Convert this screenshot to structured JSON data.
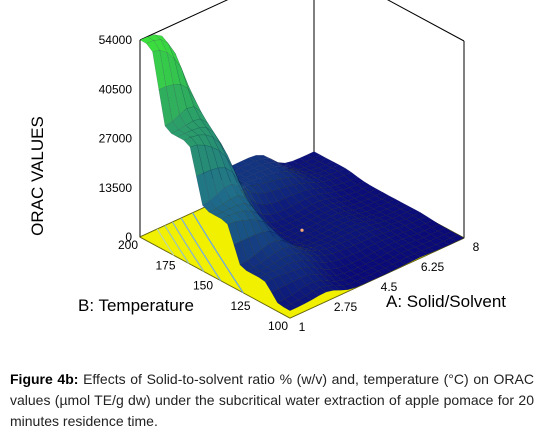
{
  "chart_data": {
    "type": "surface3d",
    "zlabel": "ORAC VALUES",
    "xlabel": "A: Solid/Solvent",
    "ylabel": "B: Temperature",
    "x_ticks": [
      "1",
      "2.75",
      "4.5",
      "6.25",
      "8"
    ],
    "y_ticks": [
      "100",
      "125",
      "150",
      "175",
      "200"
    ],
    "z_ticks": [
      "0",
      "13500",
      "27000",
      "40500",
      "54000"
    ],
    "xlim": [
      1,
      8
    ],
    "ylim": [
      100,
      200
    ],
    "zlim": [
      0,
      54000
    ],
    "surface_points": [
      {
        "x": 1,
        "y": 200,
        "z": 54000
      },
      {
        "x": 1,
        "y": 175,
        "z": 33000
      },
      {
        "x": 1,
        "y": 150,
        "z": 17000
      },
      {
        "x": 1,
        "y": 125,
        "z": 6500
      },
      {
        "x": 1,
        "y": 100,
        "z": 2000
      },
      {
        "x": 4.5,
        "y": 200,
        "z": 8000
      },
      {
        "x": 4.5,
        "y": 150,
        "z": 2000
      },
      {
        "x": 4.5,
        "y": 100,
        "z": 0
      },
      {
        "x": 8,
        "y": 200,
        "z": 1500
      },
      {
        "x": 8,
        "y": 150,
        "z": 500
      },
      {
        "x": 8,
        "y": 100,
        "z": 0
      }
    ],
    "colors": {
      "surface_high": "#3ce03c",
      "surface_mid": "#1f6e8a",
      "surface_low": "#0a0a78",
      "contour_floor": "#f0f000",
      "design_point": "#ffb070"
    }
  },
  "caption": {
    "label": "Figure 4b:",
    "text": " Effects of Solid-to-solvent ratio % (w/v) and, temperature (°C) on ORAC values (µmol TE/g dw) under the subcritical water extraction of apple pomace for 20 minutes residence time."
  }
}
